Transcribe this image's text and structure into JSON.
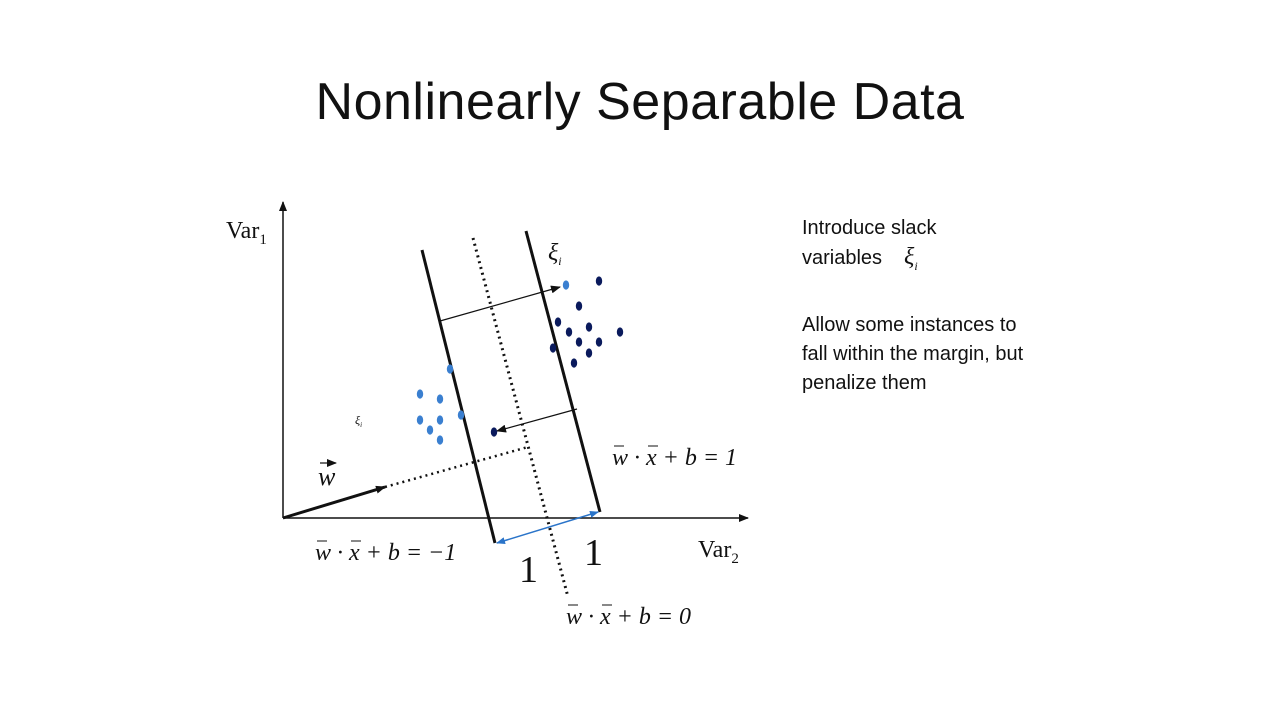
{
  "slide": {
    "title": "Nonlinearly Separable Data"
  },
  "diagram": {
    "axis_y_label": "Var",
    "axis_y_sub": "1",
    "axis_x_label": "Var",
    "axis_x_sub": "2",
    "w_vector_label": "w",
    "xi_symbol": "ξ",
    "xi_sub": "i",
    "eq_plus_one": "w · x + b = 1",
    "eq_minus_one": "w · x + b = −1",
    "eq_zero": "w · x + b = 0",
    "margin_left_label": "1",
    "margin_right_label": "1",
    "colors": {
      "dark_points": "#0a1a5c",
      "light_points": "#3a7fd0",
      "margin_arrow": "#2a74c9"
    }
  },
  "notes": {
    "slack_line1": "Introduce slack",
    "slack_line2": "variables",
    "slack_symbol": "ξ",
    "slack_sub": "i",
    "penalty_text": "Allow some instances to fall within the margin, but penalize them"
  }
}
